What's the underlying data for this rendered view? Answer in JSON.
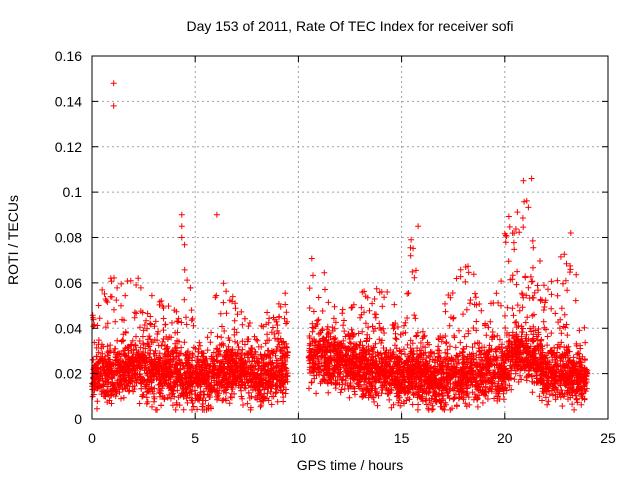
{
  "chart_data": {
    "type": "scatter",
    "title": "Day 153 of 2011, Rate Of TEC Index for receiver sofi",
    "xlabel": "GPS time / hours",
    "ylabel": "ROTI / TECUs",
    "xlim": [
      0,
      25
    ],
    "ylim": [
      0,
      0.16
    ],
    "x_ticks": [
      "0",
      "5",
      "10",
      "15",
      "20",
      "25"
    ],
    "y_ticks": [
      "0",
      "0.02",
      "0.04",
      "0.06",
      "0.08",
      "0.1",
      "0.12",
      "0.14",
      "0.16"
    ],
    "grid": true,
    "marker": "+",
    "color": "#ff0000",
    "series": [
      {
        "name": "ROTI",
        "profile_hours": [
          0,
          0.5,
          1,
          1.5,
          2,
          2.5,
          3,
          3.5,
          4,
          4.5,
          5,
          5.5,
          6,
          6.5,
          7,
          7.5,
          8,
          8.5,
          9,
          9.5,
          10,
          10.5,
          11,
          11.5,
          12,
          12.5,
          13,
          13.5,
          14,
          14.5,
          15,
          15.5,
          16,
          16.5,
          17,
          17.5,
          18,
          18.5,
          19,
          19.5,
          20,
          20.5,
          21,
          21.5,
          22,
          22.5,
          23,
          23.5,
          24
        ],
        "profile_median": [
          0.018,
          0.02,
          0.02,
          0.022,
          0.022,
          0.021,
          0.02,
          0.02,
          0.02,
          0.019,
          0.017,
          0.017,
          0.018,
          0.022,
          0.02,
          0.018,
          0.017,
          0.018,
          0.02,
          0.022,
          null,
          0.026,
          0.028,
          0.025,
          0.025,
          0.025,
          0.022,
          0.02,
          0.02,
          0.019,
          0.017,
          0.02,
          0.018,
          0.016,
          0.017,
          0.018,
          0.019,
          0.02,
          0.02,
          0.02,
          0.022,
          0.028,
          0.03,
          0.025,
          0.02,
          0.02,
          0.02,
          0.018,
          0.018
        ],
        "profile_max": [
          0.045,
          0.058,
          0.063,
          0.063,
          0.063,
          0.062,
          0.057,
          0.055,
          0.05,
          0.09,
          0.035,
          0.035,
          0.055,
          0.062,
          0.05,
          0.045,
          0.04,
          0.05,
          0.05,
          0.062,
          null,
          0.068,
          0.078,
          0.052,
          0.05,
          0.05,
          0.062,
          0.05,
          0.065,
          0.06,
          0.048,
          0.085,
          0.04,
          0.03,
          0.05,
          0.06,
          0.075,
          0.068,
          0.05,
          0.055,
          0.093,
          0.105,
          0.106,
          0.08,
          0.06,
          0.065,
          0.082,
          0.065,
          0.035
        ],
        "outliers": [
          [
            1.05,
            0.148
          ],
          [
            1.05,
            0.138
          ],
          [
            4.35,
            0.09
          ],
          [
            4.35,
            0.085
          ],
          [
            4.35,
            0.08
          ],
          [
            6.05,
            0.09
          ],
          [
            15.8,
            0.085
          ],
          [
            20.9,
            0.105
          ],
          [
            21.3,
            0.106
          ],
          [
            23.2,
            0.082
          ]
        ]
      }
    ]
  }
}
